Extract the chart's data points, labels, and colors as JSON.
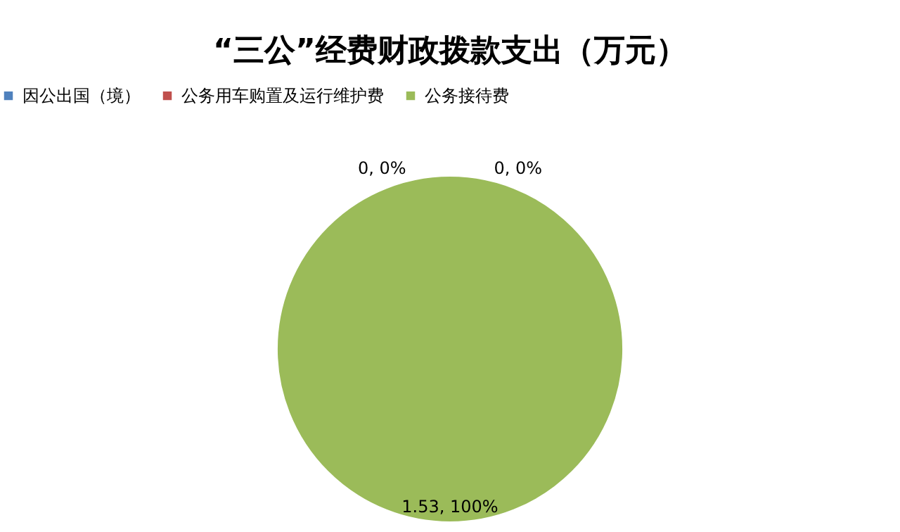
{
  "chart_data": {
    "type": "pie",
    "title": "“三公”经费财政拨款支出（万元）",
    "categories": [
      "因公出国（境）",
      "公务用车购置及运行维护费",
      "公务接待费"
    ],
    "values": [
      0,
      0,
      1.53
    ],
    "colors": [
      "#4f81bd",
      "#c0504d",
      "#9bbb59"
    ],
    "value_labels": [
      "0, 0%",
      "0, 0%",
      "1.53, 100%"
    ],
    "legend": "top"
  }
}
